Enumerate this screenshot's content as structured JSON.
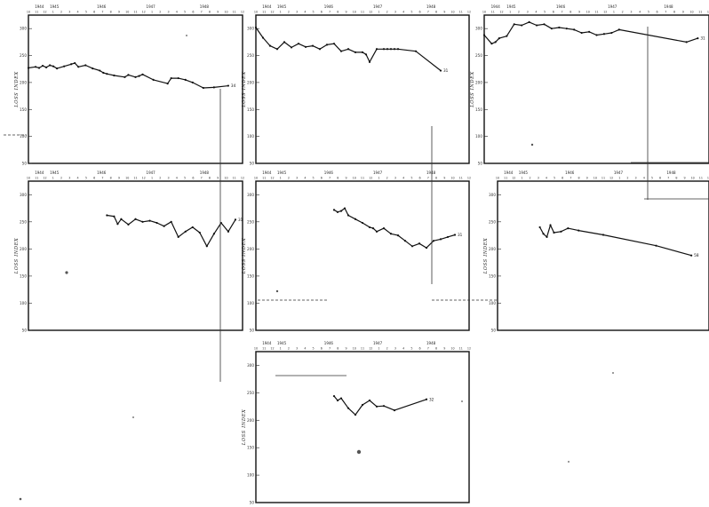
{
  "chart_data": [
    {
      "type": "line",
      "ylabel": "LOSS INDEX",
      "ylim": [
        50,
        325
      ],
      "yticks": [
        50,
        100,
        150,
        200,
        250,
        300
      ],
      "year_labels": [
        "1944",
        "1945",
        "1946",
        "1947",
        "1948"
      ],
      "x_range": [
        0,
        60
      ],
      "x": [
        0,
        2,
        3,
        4,
        5,
        6,
        7,
        8,
        10,
        12,
        13,
        14,
        16,
        18,
        20,
        21,
        22,
        24,
        27,
        28,
        30,
        31,
        32,
        35,
        39,
        40,
        42,
        44,
        46,
        49,
        52,
        56
      ],
      "values": [
        227,
        229,
        227,
        231,
        228,
        232,
        230,
        226,
        230,
        234,
        236,
        229,
        232,
        226,
        222,
        218,
        216,
        213,
        210,
        214,
        210,
        212,
        215,
        205,
        198,
        208,
        208,
        205,
        200,
        190,
        191,
        194
      ],
      "end_label": "34"
    },
    {
      "type": "line",
      "ylabel": "LOSS INDEX",
      "ylim": [
        50,
        325
      ],
      "yticks": [
        50,
        100,
        150,
        200,
        250,
        300
      ],
      "year_labels": [
        "1944",
        "1945",
        "1946",
        "1947",
        "1948"
      ],
      "x_range": [
        0,
        60
      ],
      "x": [
        0,
        2,
        4,
        6,
        8,
        10,
        12,
        14,
        16,
        18,
        20,
        22,
        24,
        26,
        28,
        30,
        31,
        32,
        34,
        36,
        37,
        38,
        39,
        40,
        45,
        52
      ],
      "values": [
        302,
        283,
        268,
        262,
        275,
        265,
        272,
        266,
        268,
        262,
        270,
        272,
        258,
        262,
        256,
        256,
        252,
        238,
        262,
        262,
        262,
        262,
        262,
        262,
        258,
        222
      ],
      "end_label": "31"
    },
    {
      "type": "line",
      "ylabel": "LOSS INDEX",
      "ylim": [
        50,
        325
      ],
      "yticks": [
        50,
        100,
        150,
        200,
        250,
        300
      ],
      "year_labels": [
        "1944",
        "1945",
        "1946",
        "1947",
        "1948"
      ],
      "x_range": [
        0,
        60
      ],
      "x": [
        0,
        2,
        3,
        4,
        6,
        8,
        10,
        12,
        14,
        16,
        18,
        20,
        22,
        24,
        26,
        28,
        30,
        32,
        34,
        36,
        54,
        57
      ],
      "values": [
        288,
        272,
        275,
        282,
        286,
        308,
        306,
        312,
        306,
        308,
        300,
        302,
        300,
        298,
        292,
        294,
        288,
        290,
        292,
        298,
        275,
        282
      ],
      "end_label": "31"
    },
    {
      "type": "line",
      "ylabel": "LOSS INDEX",
      "ylim": [
        50,
        325
      ],
      "yticks": [
        50,
        100,
        150,
        200,
        250,
        300
      ],
      "year_labels": [
        "1944",
        "1945",
        "1946",
        "1947",
        "1948"
      ],
      "x_range": [
        0,
        60
      ],
      "x": [
        22,
        24,
        25,
        26,
        28,
        30,
        32,
        34,
        36,
        38,
        40,
        42,
        44,
        46,
        48,
        50,
        52,
        54,
        56,
        58
      ],
      "values": [
        262,
        260,
        246,
        255,
        245,
        255,
        250,
        252,
        248,
        242,
        250,
        222,
        232,
        240,
        230,
        205,
        228,
        248,
        232,
        254
      ],
      "end_label": "31"
    },
    {
      "type": "line",
      "ylabel": "LOSS INDEX",
      "ylim": [
        50,
        325
      ],
      "yticks": [
        50,
        100,
        150,
        200,
        250,
        300
      ],
      "year_labels": [
        "1944",
        "1945",
        "1946",
        "1947",
        "1948"
      ],
      "x_range": [
        0,
        60
      ],
      "x": [
        22,
        23,
        24,
        25,
        26,
        28,
        30,
        32,
        33,
        34,
        36,
        38,
        40,
        42,
        44,
        46,
        48,
        50,
        52,
        54,
        56
      ],
      "values": [
        272,
        268,
        270,
        275,
        262,
        255,
        248,
        240,
        238,
        232,
        238,
        228,
        225,
        215,
        205,
        210,
        202,
        215,
        218,
        222,
        226
      ],
      "end_label": "31"
    },
    {
      "type": "line",
      "ylabel": "LOSS INDEX",
      "ylim": [
        50,
        325
      ],
      "yticks": [
        50,
        100,
        150,
        200,
        250,
        300
      ],
      "year_labels": [
        "1944",
        "1945",
        "1946",
        "1947",
        "1948"
      ],
      "x_range": [
        0,
        60
      ],
      "x": [
        12,
        13,
        14,
        15,
        16,
        18,
        20,
        23,
        30,
        45,
        55
      ],
      "values": [
        240,
        228,
        222,
        244,
        230,
        232,
        238,
        234,
        226,
        206,
        188
      ],
      "end_label": "58"
    },
    {
      "type": "line",
      "ylabel": "LOSS INDEX",
      "ylim": [
        50,
        325
      ],
      "yticks": [
        50,
        100,
        150,
        200,
        250,
        300
      ],
      "year_labels": [
        "1944",
        "1945",
        "1946",
        "1947",
        "1948"
      ],
      "x_range": [
        0,
        60
      ],
      "x": [
        22,
        23,
        24,
        26,
        28,
        30,
        32,
        34,
        36,
        39,
        48
      ],
      "values": [
        244,
        236,
        240,
        222,
        210,
        228,
        236,
        225,
        226,
        218,
        238
      ],
      "end_label": "32"
    }
  ]
}
